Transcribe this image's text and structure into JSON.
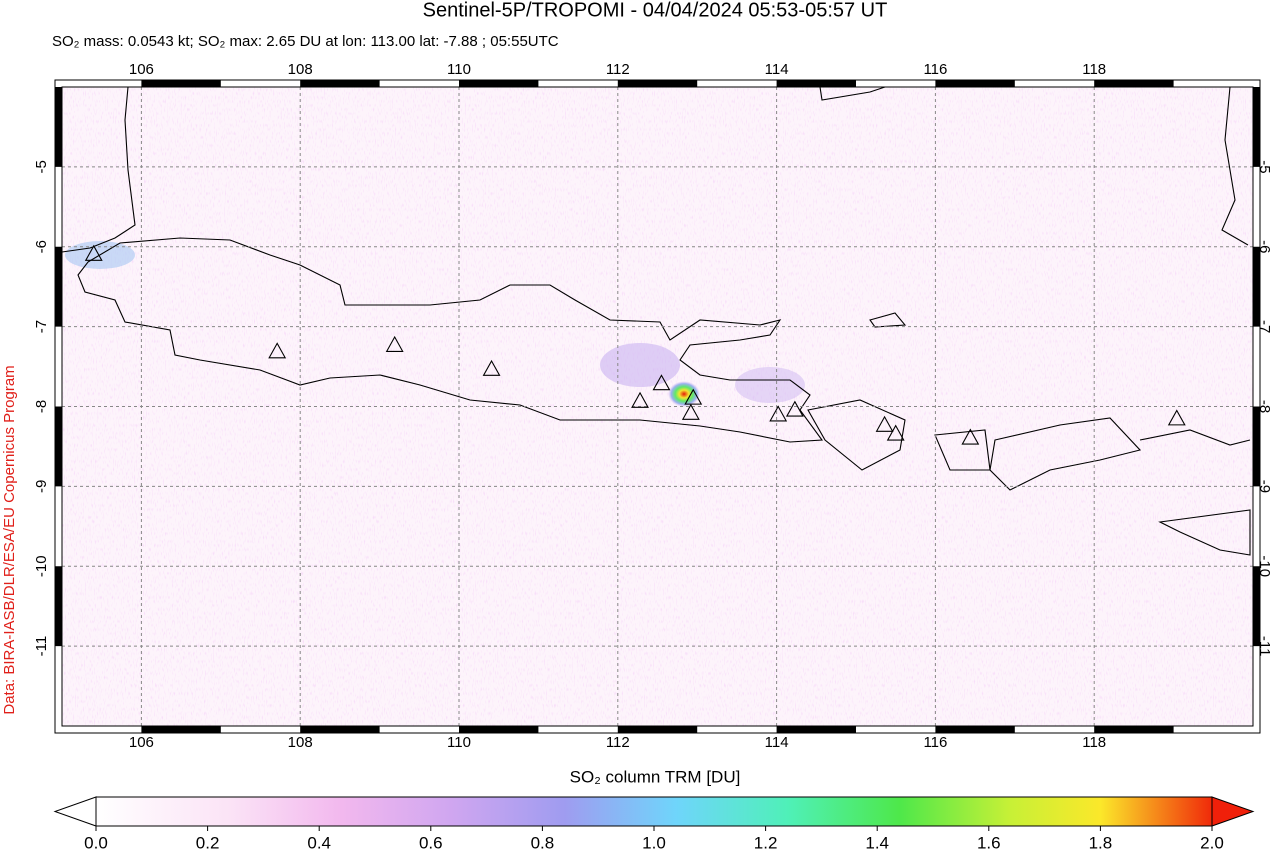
{
  "chart_data": {
    "type": "map",
    "title": "Sentinel-5P/TROPOMI - 04/04/2024 05:53-05:57 UT",
    "subtitle": "SO₂ mass: 0.0543 kt; SO₂ max: 2.65 DU at lon: 113.00 lat: -7.88 ; 05:55UTC",
    "credit": "Data: BIRA-IASB/DLR/ESA/EU Copernicus Program",
    "xlim": [
      105,
      120
    ],
    "ylim": [
      -12,
      -4
    ],
    "xticks": [
      106,
      108,
      110,
      112,
      114,
      116,
      118
    ],
    "yticks": [
      -5,
      -6,
      -7,
      -8,
      -9,
      -10,
      -11
    ],
    "grid": true,
    "volcanoes": {
      "lon": [
        105.4,
        107.71,
        109.19,
        110.41,
        112.28,
        112.55,
        112.92,
        112.95,
        114.02,
        114.23,
        115.36,
        115.5,
        116.44,
        119.04
      ],
      "lat": [
        -6.09,
        -7.31,
        -7.23,
        -7.53,
        -7.93,
        -7.71,
        -8.08,
        -7.89,
        -8.1,
        -8.04,
        -8.23,
        -8.34,
        -8.39,
        -8.15
      ]
    },
    "colorbar": {
      "label": "SO₂ column TRM [DU]",
      "lim": [
        0,
        2
      ],
      "ticks": [
        {
          "value": 0,
          "label": "0.0"
        },
        {
          "value": 0.2,
          "label": "0.2"
        },
        {
          "value": 0.4,
          "label": "0.4"
        },
        {
          "value": 0.6,
          "label": "0.6"
        },
        {
          "value": 0.8,
          "label": "0.8"
        },
        {
          "value": 1,
          "label": "1.0"
        },
        {
          "value": 1.2,
          "label": "1.2"
        },
        {
          "value": 1.4,
          "label": "1.4"
        },
        {
          "value": 1.6,
          "label": "1.6"
        },
        {
          "value": 1.8,
          "label": "1.8"
        },
        {
          "value": 2,
          "label": "2.0"
        }
      ]
    }
  }
}
